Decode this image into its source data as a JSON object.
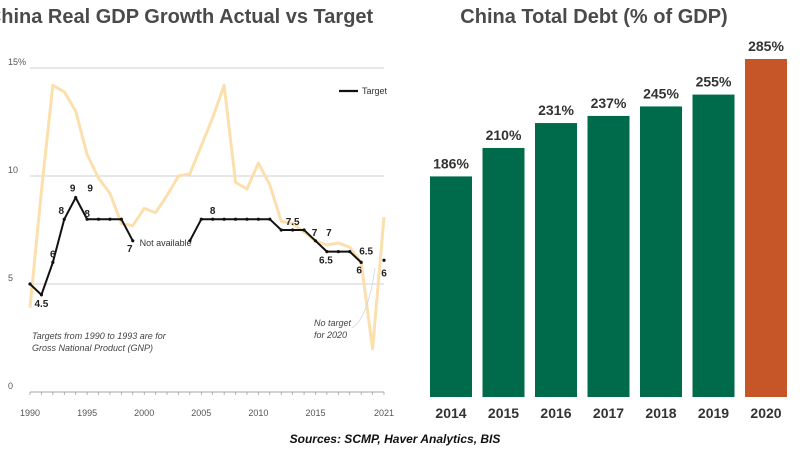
{
  "source_note": "Sources: SCMP, Haver Analytics, BIS",
  "chart_data": [
    {
      "type": "line",
      "title": "China Real GDP Growth Actual vs Target",
      "xlim": [
        1990,
        2021
      ],
      "ylim": [
        0,
        15
      ],
      "y_ticks": [
        "15%",
        "10",
        "5",
        "0"
      ],
      "x_ticks": [
        "1990",
        "1995",
        "2000",
        "2005",
        "2010",
        "2015",
        "2021"
      ],
      "legend": "Target",
      "colors": {
        "actual": "#fbe0ae",
        "target": "#111111",
        "grid": "#bfbfbf"
      },
      "series": [
        {
          "x": [
            1990,
            1991,
            1992,
            1993,
            1994,
            1995,
            1996,
            1997,
            1998,
            1999,
            2000,
            2001,
            2002,
            2003,
            2004,
            2005,
            2006,
            2007,
            2008,
            2009,
            2010,
            2011,
            2012,
            2013,
            2014,
            2015,
            2016,
            2017,
            2018,
            2019,
            2020,
            2021
          ],
          "values": [
            3.9,
            9.3,
            14.2,
            13.9,
            13.0,
            11.0,
            9.9,
            9.2,
            7.8,
            7.7,
            8.5,
            8.3,
            9.1,
            10.0,
            10.1,
            11.4,
            12.7,
            14.2,
            9.7,
            9.4,
            10.6,
            9.6,
            7.9,
            7.8,
            7.4,
            7.0,
            6.8,
            6.9,
            6.7,
            6.0,
            2.0,
            8.1
          ]
        },
        {
          "name": "Target",
          "x": [
            1990,
            1991,
            1992,
            1993,
            1994,
            1995,
            1996,
            1997,
            1998,
            1999,
            2004,
            2005,
            2006,
            2007,
            2008,
            2009,
            2010,
            2011,
            2012,
            2013,
            2014,
            2015,
            2016,
            2017,
            2018,
            2019
          ],
          "values": [
            5,
            4.5,
            6,
            8,
            9,
            8,
            8,
            8,
            8,
            7,
            7,
            8,
            8,
            8,
            8,
            8,
            8,
            8,
            7.5,
            7.5,
            7.5,
            7,
            6.5,
            6.5,
            6.5,
            6
          ]
        }
      ],
      "annotations": [
        {
          "x": 1991,
          "y": 4.5,
          "text": "4.5"
        },
        {
          "x": 1992,
          "y": 6,
          "text": "6"
        },
        {
          "x": 1993,
          "y": 8,
          "text": "8"
        },
        {
          "x": 1994,
          "y": 9,
          "text": "9"
        },
        {
          "x": 1995,
          "y": 9,
          "text": "9"
        },
        {
          "x": 1995,
          "y": 8,
          "text": "8"
        },
        {
          "x": 1999,
          "y": 7,
          "text": "7"
        },
        {
          "x": 2006,
          "y": 8,
          "text": "8"
        },
        {
          "x": 2013,
          "y": 7.5,
          "text": "7.5"
        },
        {
          "x": 2015,
          "y": 7,
          "text": "7"
        },
        {
          "x": 2016,
          "y": 7,
          "text": "7"
        },
        {
          "x": 2016,
          "y": 6.5,
          "text": "6.5"
        },
        {
          "x": 2019,
          "y": 6.5,
          "text": "6.5"
        },
        {
          "x": 2019,
          "y": 6,
          "text": "6"
        },
        {
          "x": 2021,
          "y": 6,
          "text": "6"
        }
      ],
      "notes": {
        "not_available": "Not available",
        "gnp": [
          "Targets from 1990 to 1993 are for",
          "Gross National Product (GNP)"
        ],
        "no_target": [
          "No target",
          "for 2020"
        ]
      }
    },
    {
      "type": "bar",
      "title": "China Total Debt (% of GDP)",
      "categories": [
        "2014",
        "2015",
        "2016",
        "2017",
        "2018",
        "2019",
        "2020"
      ],
      "values": [
        186,
        210,
        231,
        237,
        245,
        255,
        285
      ],
      "labels": [
        "186%",
        "210%",
        "231%",
        "237%",
        "245%",
        "255%",
        "285%"
      ],
      "ylim": [
        0,
        285
      ],
      "colors": {
        "default": "#006b4a",
        "highlight": "#c65527"
      },
      "highlight_index": 6
    }
  ]
}
